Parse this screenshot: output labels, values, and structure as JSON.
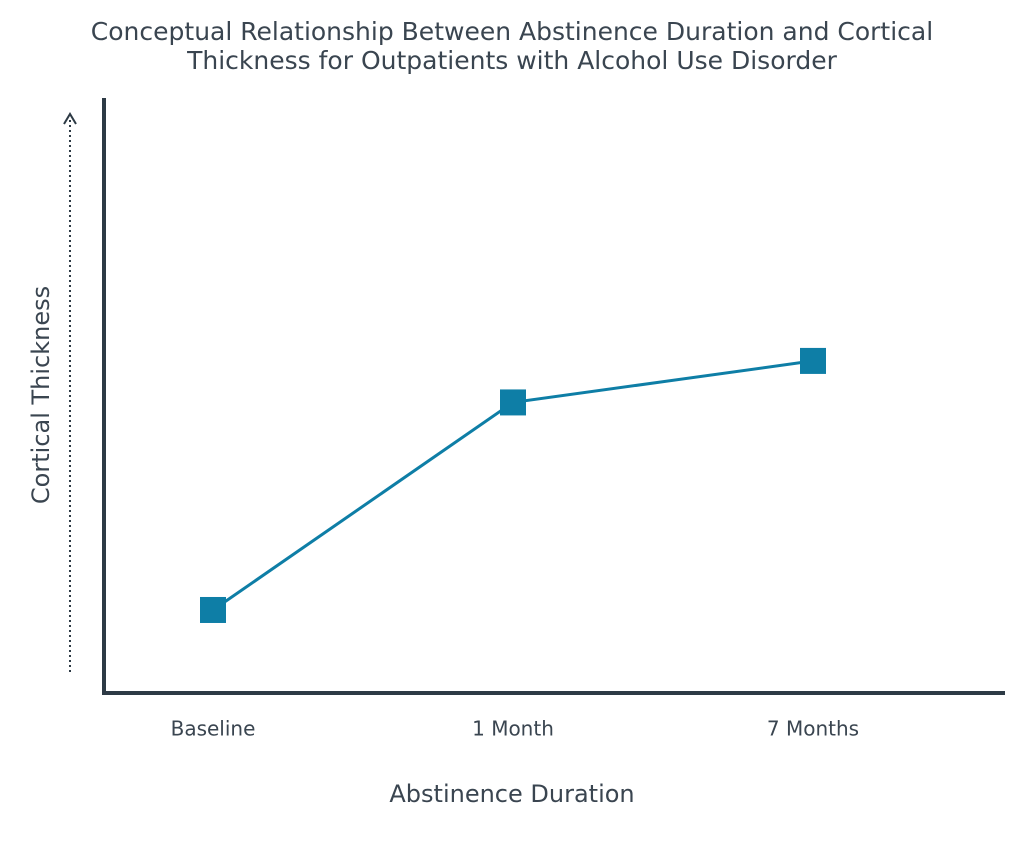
{
  "chart_data": {
    "type": "line",
    "title": [
      "Conceptual Relationship Between Abstinence Duration and Cortical",
      "Thickness for Outpatients with Alcohol Use Disorder"
    ],
    "x_label": "Abstinence Duration",
    "y_label": "Cortical Thickness",
    "categories": [
      "Baseline",
      "1 Month",
      "7 Months"
    ],
    "values": [
      14,
      49,
      56
    ],
    "color": "#0e7ea6",
    "ylim": [
      0,
      100
    ]
  }
}
